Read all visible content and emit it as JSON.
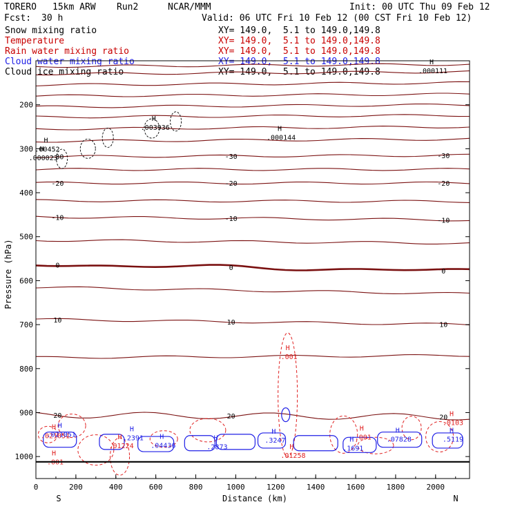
{
  "header": {
    "model": "TORERO",
    "resolution": "15km ARW",
    "run": "Run2",
    "org": "NCAR/MMM",
    "init": "Init: 00 UTC Thu 09 Feb 12",
    "fcst_label": "Fcst:",
    "fcst_value": "30 h",
    "valid": "Valid: 06 UTC Fri 10 Feb 12 (00 CST Fri 10 Feb 12)"
  },
  "fields": [
    {
      "name": "Snow mixing ratio",
      "xy": "XY= 149.0,  5.1 to 149.0,149.8",
      "color": "#000000"
    },
    {
      "name": "Temperature",
      "xy": "XY= 149.0,  5.1 to 149.0,149.8",
      "color": "#c80000"
    },
    {
      "name": "Rain water mixing ratio",
      "xy": "XY= 149.0,  5.1 to 149.0,149.8",
      "color": "#c80000"
    },
    {
      "name": "Cloud water mixing ratio",
      "xy": "XY= 149.0,  5.1 to 149.0,149.8",
      "color": "#1e1ee6"
    },
    {
      "name": "Cloud ice mixing ratio",
      "xy": "XY= 149.0,  5.1 to 149.0,149.8",
      "color": "#000000"
    }
  ],
  "colors": {
    "temperature": "#7a1010",
    "rain": "#e02020",
    "cloud_water": "#1e1ee6",
    "frame": "#000000"
  },
  "chart_data": {
    "type": "line",
    "title": "",
    "xlabel": "Distance (km)",
    "ylabel": "Pressure (hPa)",
    "xlim": [
      0,
      2170
    ],
    "ylim": [
      1050,
      100
    ],
    "x_ticks": [
      0,
      200,
      400,
      600,
      800,
      1000,
      1200,
      1400,
      1600,
      1800,
      2000
    ],
    "y_ticks": [
      200,
      300,
      400,
      500,
      600,
      700,
      800,
      900,
      1000
    ],
    "end_labels": {
      "left": "S",
      "right": "N"
    },
    "temperature_contours": [
      {
        "pressure_left": 113,
        "pressure_right": 108,
        "label": ""
      },
      {
        "pressure_left": 130,
        "pressure_right": 125,
        "label": ""
      },
      {
        "pressure_left": 155,
        "pressure_right": 150,
        "label": ""
      },
      {
        "pressure_left": 180,
        "pressure_right": 176,
        "label": ""
      },
      {
        "pressure_left": 205,
        "pressure_right": 200,
        "label": ""
      },
      {
        "pressure_left": 228,
        "pressure_right": 224,
        "label": ""
      },
      {
        "pressure_left": 255,
        "pressure_right": 250,
        "label": ""
      },
      {
        "pressure_left": 283,
        "pressure_right": 278,
        "label": ""
      },
      {
        "pressure_left": 318,
        "pressure_right": 315,
        "label": "-30"
      },
      {
        "pressure_left": 347,
        "pressure_right": 347,
        "label": ""
      },
      {
        "pressure_left": 378,
        "pressure_right": 378,
        "label": "-20"
      },
      {
        "pressure_left": 418,
        "pressure_right": 420,
        "label": ""
      },
      {
        "pressure_left": 455,
        "pressure_right": 462,
        "label": "-10"
      },
      {
        "pressure_left": 508,
        "pressure_right": 515,
        "label": ""
      },
      {
        "pressure_left": 563,
        "pressure_right": 578,
        "label": "0"
      },
      {
        "pressure_left": 615,
        "pressure_right": 630,
        "label": ""
      },
      {
        "pressure_left": 688,
        "pressure_right": 700,
        "label": "10"
      },
      {
        "pressure_left": 775,
        "pressure_right": 770,
        "label": ""
      },
      {
        "pressure_left": 905,
        "pressure_right": 910,
        "label": "20"
      }
    ],
    "temperature_labels": [
      "-30",
      "-20",
      "-10",
      "0",
      "10",
      "20",
      "-30",
      "-20",
      "-10",
      "0",
      "10",
      "20"
    ],
    "snow_maxima": [
      {
        "x": 30,
        "p": 323,
        "label": ".000023"
      },
      {
        "x": 50,
        "p": 303,
        "label": ".00452"
      },
      {
        "x": 590,
        "p": 254,
        "label": ".003936"
      },
      {
        "x": 1220,
        "p": 277,
        "label": ".000144"
      },
      {
        "x": 1980,
        "p": 125,
        "label": ".000111"
      }
    ],
    "rain_maxima": [
      {
        "x": 90,
        "p": 955,
        "label": ".021051"
      },
      {
        "x": 420,
        "p": 978,
        "label": ".01224"
      },
      {
        "x": 1260,
        "p": 775,
        "label": ".001"
      },
      {
        "x": 1280,
        "p": 1000,
        "label": ".01258"
      },
      {
        "x": 1630,
        "p": 958,
        "label": ".001"
      },
      {
        "x": 2080,
        "p": 925,
        "label": ".0103"
      },
      {
        "x": 90,
        "p": 1015,
        "label": ".001"
      }
    ],
    "cloud_water_maxima": [
      {
        "x": 120,
        "p": 952,
        "label": ".021051"
      },
      {
        "x": 480,
        "p": 960,
        "label": ".2391"
      },
      {
        "x": 630,
        "p": 977,
        "label": ".04436"
      },
      {
        "x": 900,
        "p": 980,
        "label": ".2873"
      },
      {
        "x": 1190,
        "p": 965,
        "label": ".3247"
      },
      {
        "x": 1580,
        "p": 983,
        "label": ".1691"
      },
      {
        "x": 1810,
        "p": 963,
        "label": ".07828"
      },
      {
        "x": 2080,
        "p": 963,
        "label": ".5119"
      }
    ]
  }
}
